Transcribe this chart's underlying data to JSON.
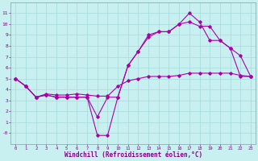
{
  "xlabel": "Windchill (Refroidissement éolien,°C)",
  "bg_color": "#c8f0f0",
  "line_color": "#aa00aa",
  "grid_color": "#aadddd",
  "series1": [
    [
      0,
      5.0
    ],
    [
      1,
      4.3
    ],
    [
      2,
      3.3
    ],
    [
      3,
      3.5
    ],
    [
      4,
      3.3
    ],
    [
      5,
      3.3
    ],
    [
      6,
      3.3
    ],
    [
      7,
      3.3
    ],
    [
      8,
      -0.2
    ],
    [
      9,
      -0.2
    ],
    [
      10,
      3.3
    ],
    [
      11,
      6.2
    ],
    [
      12,
      7.5
    ],
    [
      13,
      8.8
    ],
    [
      14,
      9.3
    ],
    [
      15,
      9.3
    ],
    [
      16,
      10.0
    ],
    [
      17,
      11.0
    ],
    [
      18,
      10.2
    ],
    [
      19,
      8.5
    ],
    [
      20,
      8.5
    ],
    [
      21,
      7.8
    ],
    [
      22,
      7.1
    ],
    [
      23,
      5.2
    ]
  ],
  "series2": [
    [
      0,
      5.0
    ],
    [
      1,
      4.3
    ],
    [
      2,
      3.3
    ],
    [
      3,
      3.5
    ],
    [
      4,
      3.3
    ],
    [
      5,
      3.3
    ],
    [
      6,
      3.3
    ],
    [
      7,
      3.3
    ],
    [
      8,
      1.5
    ],
    [
      9,
      3.3
    ],
    [
      10,
      3.3
    ],
    [
      11,
      6.2
    ],
    [
      12,
      7.5
    ],
    [
      13,
      9.0
    ],
    [
      14,
      9.3
    ],
    [
      15,
      9.3
    ],
    [
      16,
      10.0
    ],
    [
      17,
      10.2
    ],
    [
      18,
      9.8
    ],
    [
      19,
      9.8
    ],
    [
      20,
      8.5
    ],
    [
      21,
      7.8
    ],
    [
      22,
      5.2
    ],
    [
      23,
      5.2
    ]
  ],
  "series3": [
    [
      0,
      5.0
    ],
    [
      1,
      4.3
    ],
    [
      2,
      3.3
    ],
    [
      3,
      3.6
    ],
    [
      4,
      3.5
    ],
    [
      5,
      3.5
    ],
    [
      6,
      3.6
    ],
    [
      7,
      3.5
    ],
    [
      8,
      3.4
    ],
    [
      9,
      3.4
    ],
    [
      10,
      4.3
    ],
    [
      11,
      4.8
    ],
    [
      12,
      5.0
    ],
    [
      13,
      5.2
    ],
    [
      14,
      5.2
    ],
    [
      15,
      5.2
    ],
    [
      16,
      5.3
    ],
    [
      17,
      5.5
    ],
    [
      18,
      5.5
    ],
    [
      19,
      5.5
    ],
    [
      20,
      5.5
    ],
    [
      21,
      5.5
    ],
    [
      22,
      5.3
    ],
    [
      23,
      5.2
    ]
  ],
  "ylim": [
    -1,
    12
  ],
  "xlim": [
    -0.5,
    23.5
  ],
  "yticks": [
    0,
    1,
    2,
    3,
    4,
    5,
    6,
    7,
    8,
    9,
    10,
    11
  ],
  "ytick_labels": [
    "-0",
    "1",
    "2",
    "3",
    "4",
    "5",
    "6",
    "7",
    "8",
    "9",
    "10",
    "11"
  ],
  "xticks": [
    0,
    1,
    2,
    3,
    4,
    5,
    6,
    7,
    8,
    9,
    10,
    11,
    12,
    13,
    14,
    15,
    16,
    17,
    18,
    19,
    20,
    21,
    22,
    23
  ]
}
